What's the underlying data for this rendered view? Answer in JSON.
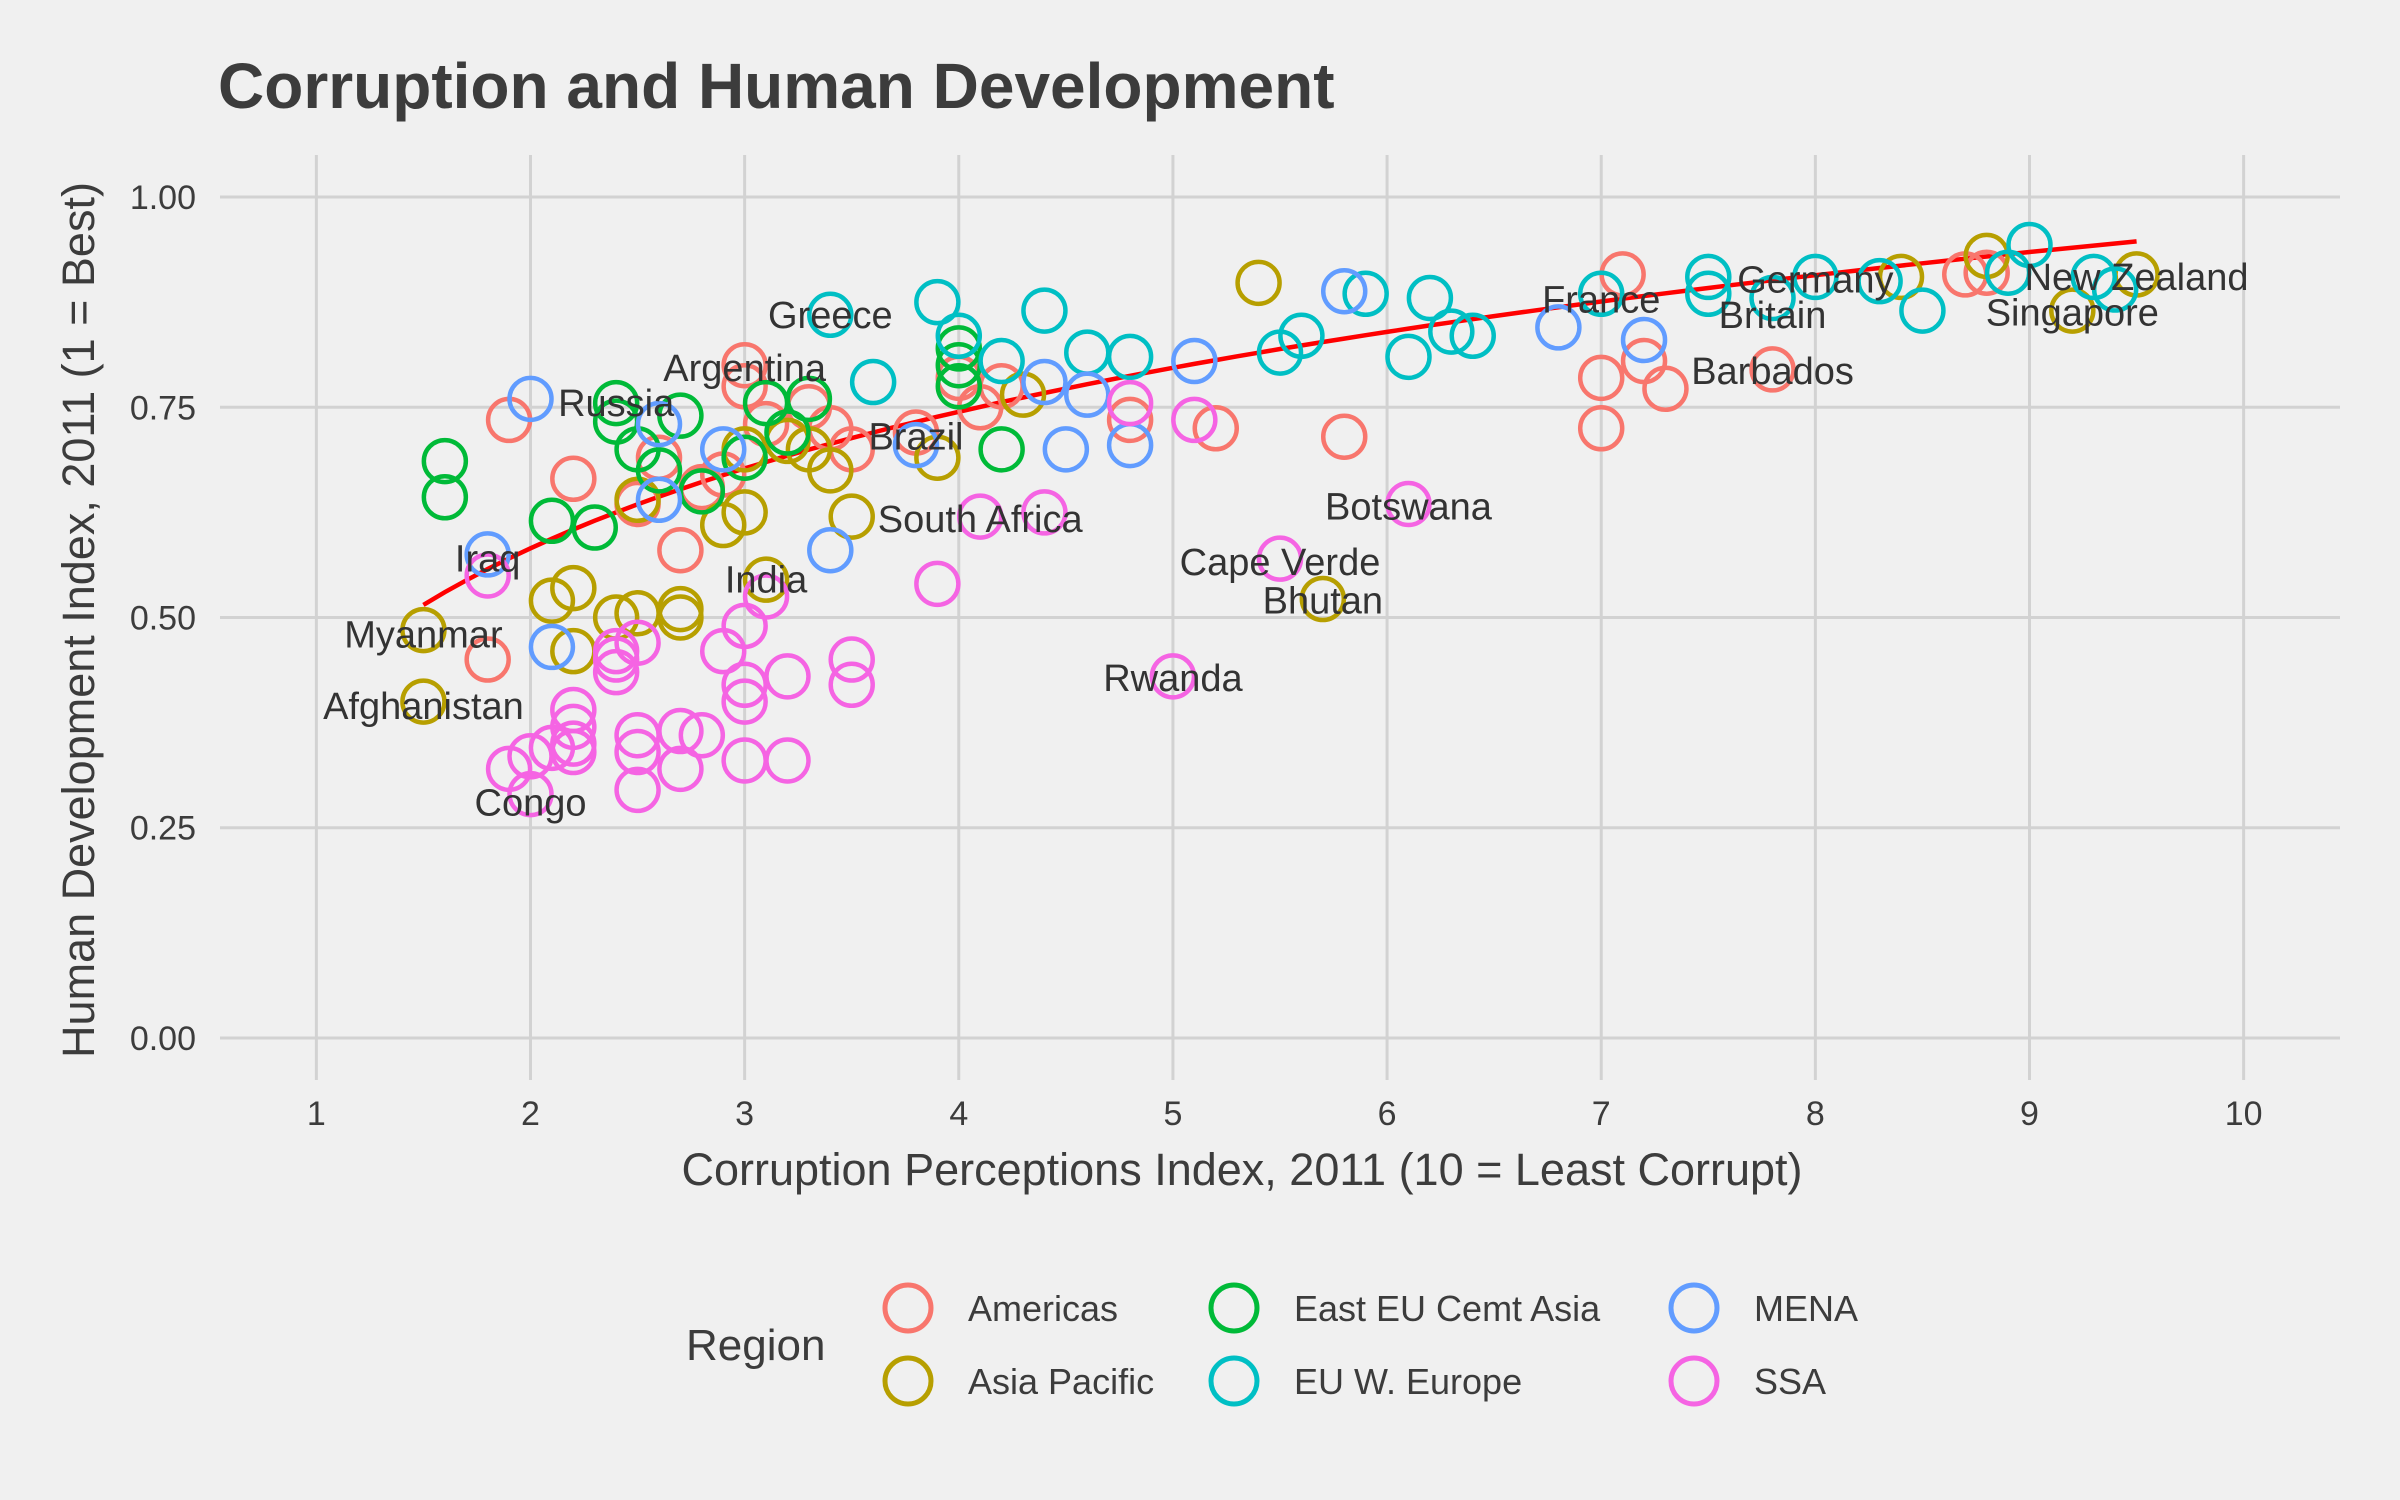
{
  "chart_data": {
    "type": "scatter",
    "title": "Corruption and Human Development",
    "xlabel": "Corruption Perceptions Index, 2011 (10 = Least Corrupt)",
    "ylabel": "Human Development Index, 2011 (1 = Best)",
    "xlim": [
      0.55,
      10.45
    ],
    "ylim": [
      -0.05,
      1.05
    ],
    "x_ticks": [
      1,
      2,
      3,
      4,
      5,
      6,
      7,
      8,
      9,
      10
    ],
    "y_ticks": [
      0.0,
      0.25,
      0.5,
      0.75,
      1.0
    ],
    "y_tick_labels": [
      "0.00",
      "0.25",
      "0.50",
      "0.75",
      "1.00"
    ],
    "legend": {
      "title": "Region",
      "position": "bottom",
      "entries": [
        "Americas",
        "Asia Pacific",
        "East EU Cemt Asia",
        "EU W. Europe",
        "MENA",
        "SSA"
      ]
    },
    "colors": {
      "Americas": "#F8766D",
      "Asia Pacific": "#B79F00",
      "East EU Cemt Asia": "#00BA38",
      "EU W. Europe": "#00BFC4",
      "MENA": "#619CFF",
      "SSA": "#F564E3",
      "trend": "#FF0000"
    },
    "trend_line": {
      "model": "y = a + b*ln(x)",
      "a": 0.42,
      "b": 0.2342,
      "x_range": [
        1.5,
        9.5
      ]
    },
    "series": [
      {
        "name": "Americas",
        "points": [
          [
            1.9,
            0.735
          ],
          [
            1.8,
            0.45
          ],
          [
            2.2,
            0.665
          ],
          [
            2.5,
            0.635
          ],
          [
            2.6,
            0.69
          ],
          [
            2.7,
            0.58
          ],
          [
            2.8,
            0.655
          ],
          [
            2.9,
            0.67
          ],
          [
            3.0,
            0.8
          ],
          [
            3.0,
            0.775
          ],
          [
            3.1,
            0.73
          ],
          [
            3.3,
            0.75
          ],
          [
            3.4,
            0.725
          ],
          [
            3.5,
            0.7
          ],
          [
            3.8,
            0.72
          ],
          [
            4.0,
            0.785
          ],
          [
            4.1,
            0.75
          ],
          [
            4.2,
            0.775
          ],
          [
            4.8,
            0.735
          ],
          [
            5.2,
            0.725
          ],
          [
            5.8,
            0.715
          ],
          [
            7.0,
            0.785
          ],
          [
            7.0,
            0.725
          ],
          [
            7.1,
            0.908
          ],
          [
            7.2,
            0.805
          ],
          [
            7.3,
            0.772
          ],
          [
            7.8,
            0.795
          ],
          [
            8.7,
            0.908
          ],
          [
            8.8,
            0.91
          ]
        ]
      },
      {
        "name": "Asia Pacific",
        "points": [
          [
            1.5,
            0.4
          ],
          [
            1.5,
            0.485
          ],
          [
            2.1,
            0.52
          ],
          [
            2.2,
            0.46
          ],
          [
            2.2,
            0.535
          ],
          [
            2.4,
            0.5
          ],
          [
            2.5,
            0.505
          ],
          [
            2.5,
            0.64
          ],
          [
            2.7,
            0.51
          ],
          [
            2.7,
            0.5
          ],
          [
            2.9,
            0.61
          ],
          [
            3.0,
            0.625
          ],
          [
            3.0,
            0.7
          ],
          [
            3.1,
            0.545
          ],
          [
            3.2,
            0.71
          ],
          [
            3.3,
            0.7
          ],
          [
            3.4,
            0.675
          ],
          [
            3.5,
            0.62
          ],
          [
            3.9,
            0.69
          ],
          [
            4.3,
            0.765
          ],
          [
            5.4,
            0.898
          ],
          [
            5.7,
            0.522
          ],
          [
            8.4,
            0.905
          ],
          [
            8.8,
            0.93
          ],
          [
            9.2,
            0.865
          ],
          [
            9.5,
            0.908
          ]
        ]
      },
      {
        "name": "East EU Cemt Asia",
        "points": [
          [
            1.6,
            0.686
          ],
          [
            1.6,
            0.643
          ],
          [
            2.1,
            0.615
          ],
          [
            2.3,
            0.607
          ],
          [
            2.4,
            0.755
          ],
          [
            2.4,
            0.733
          ],
          [
            2.5,
            0.7
          ],
          [
            2.6,
            0.675
          ],
          [
            2.7,
            0.74
          ],
          [
            2.8,
            0.65
          ],
          [
            3.0,
            0.69
          ],
          [
            3.1,
            0.755
          ],
          [
            3.2,
            0.72
          ],
          [
            3.3,
            0.76
          ],
          [
            4.0,
            0.82
          ],
          [
            4.0,
            0.8
          ],
          [
            4.0,
            0.775
          ],
          [
            4.2,
            0.7
          ]
        ]
      },
      {
        "name": "EU W. Europe",
        "points": [
          [
            3.4,
            0.86
          ],
          [
            3.6,
            0.78
          ],
          [
            3.9,
            0.875
          ],
          [
            4.0,
            0.835
          ],
          [
            4.2,
            0.805
          ],
          [
            4.4,
            0.865
          ],
          [
            4.6,
            0.815
          ],
          [
            4.8,
            0.81
          ],
          [
            5.5,
            0.815
          ],
          [
            5.6,
            0.835
          ],
          [
            5.9,
            0.885
          ],
          [
            6.1,
            0.81
          ],
          [
            6.2,
            0.88
          ],
          [
            6.3,
            0.84
          ],
          [
            6.4,
            0.835
          ],
          [
            7.0,
            0.885
          ],
          [
            7.5,
            0.905
          ],
          [
            7.5,
            0.885
          ],
          [
            7.8,
            0.88
          ],
          [
            8.0,
            0.905
          ],
          [
            8.3,
            0.9
          ],
          [
            8.5,
            0.865
          ],
          [
            8.9,
            0.91
          ],
          [
            9.0,
            0.943
          ],
          [
            9.3,
            0.905
          ],
          [
            9.4,
            0.89
          ]
        ]
      },
      {
        "name": "MENA",
        "points": [
          [
            1.8,
            0.575
          ],
          [
            2.0,
            0.76
          ],
          [
            2.1,
            0.465
          ],
          [
            2.6,
            0.73
          ],
          [
            2.6,
            0.64
          ],
          [
            2.9,
            0.7
          ],
          [
            3.4,
            0.58
          ],
          [
            3.8,
            0.705
          ],
          [
            4.4,
            0.78
          ],
          [
            4.5,
            0.7
          ],
          [
            4.6,
            0.765
          ],
          [
            4.8,
            0.705
          ],
          [
            5.1,
            0.805
          ],
          [
            5.8,
            0.888
          ],
          [
            6.8,
            0.845
          ],
          [
            7.2,
            0.83
          ]
        ]
      },
      {
        "name": "SSA",
        "points": [
          [
            1.8,
            0.55
          ],
          [
            1.9,
            0.32
          ],
          [
            2.0,
            0.29
          ],
          [
            2.0,
            0.335
          ],
          [
            2.1,
            0.345
          ],
          [
            2.2,
            0.35
          ],
          [
            2.2,
            0.37
          ],
          [
            2.2,
            0.39
          ],
          [
            2.2,
            0.34
          ],
          [
            2.4,
            0.435
          ],
          [
            2.4,
            0.45
          ],
          [
            2.4,
            0.46
          ],
          [
            2.5,
            0.295
          ],
          [
            2.5,
            0.34
          ],
          [
            2.5,
            0.36
          ],
          [
            2.5,
            0.47
          ],
          [
            2.7,
            0.32
          ],
          [
            2.7,
            0.365
          ],
          [
            2.8,
            0.36
          ],
          [
            2.9,
            0.46
          ],
          [
            3.0,
            0.33
          ],
          [
            3.0,
            0.4
          ],
          [
            3.0,
            0.42
          ],
          [
            3.0,
            0.49
          ],
          [
            3.1,
            0.525
          ],
          [
            3.2,
            0.33
          ],
          [
            3.2,
            0.43
          ],
          [
            3.5,
            0.45
          ],
          [
            3.5,
            0.42
          ],
          [
            3.9,
            0.54
          ],
          [
            4.1,
            0.62
          ],
          [
            4.4,
            0.625
          ],
          [
            4.8,
            0.755
          ],
          [
            5.0,
            0.43
          ],
          [
            5.1,
            0.735
          ],
          [
            5.5,
            0.57
          ],
          [
            6.1,
            0.635
          ]
        ]
      }
    ],
    "annotations": [
      {
        "text": "Russia",
        "x": 2.4,
        "y": 0.755
      },
      {
        "text": "Iraq",
        "x": 1.8,
        "y": 0.57
      },
      {
        "text": "Myanmar",
        "x": 1.5,
        "y": 0.48
      },
      {
        "text": "Afghanistan",
        "x": 1.5,
        "y": 0.395
      },
      {
        "text": "Congo",
        "x": 2.0,
        "y": 0.28
      },
      {
        "text": "Greece",
        "x": 3.4,
        "y": 0.86
      },
      {
        "text": "Argentina",
        "x": 3.0,
        "y": 0.797
      },
      {
        "text": "Brazil",
        "x": 3.8,
        "y": 0.715
      },
      {
        "text": "South Africa",
        "x": 4.1,
        "y": 0.617
      },
      {
        "text": "India",
        "x": 3.1,
        "y": 0.545
      },
      {
        "text": "Botswana",
        "x": 6.1,
        "y": 0.632
      },
      {
        "text": "Cape Verde",
        "x": 5.5,
        "y": 0.566
      },
      {
        "text": "Bhutan",
        "x": 5.7,
        "y": 0.52
      },
      {
        "text": "Rwanda",
        "x": 5.0,
        "y": 0.428
      },
      {
        "text": "France",
        "x": 7.0,
        "y": 0.878
      },
      {
        "text": "Germany",
        "x": 8.0,
        "y": 0.902
      },
      {
        "text": "Britain",
        "x": 7.8,
        "y": 0.86
      },
      {
        "text": "Barbados",
        "x": 7.8,
        "y": 0.793
      },
      {
        "text": "New Zealand",
        "x": 9.5,
        "y": 0.905
      },
      {
        "text": "Singapore",
        "x": 9.2,
        "y": 0.863
      }
    ]
  }
}
